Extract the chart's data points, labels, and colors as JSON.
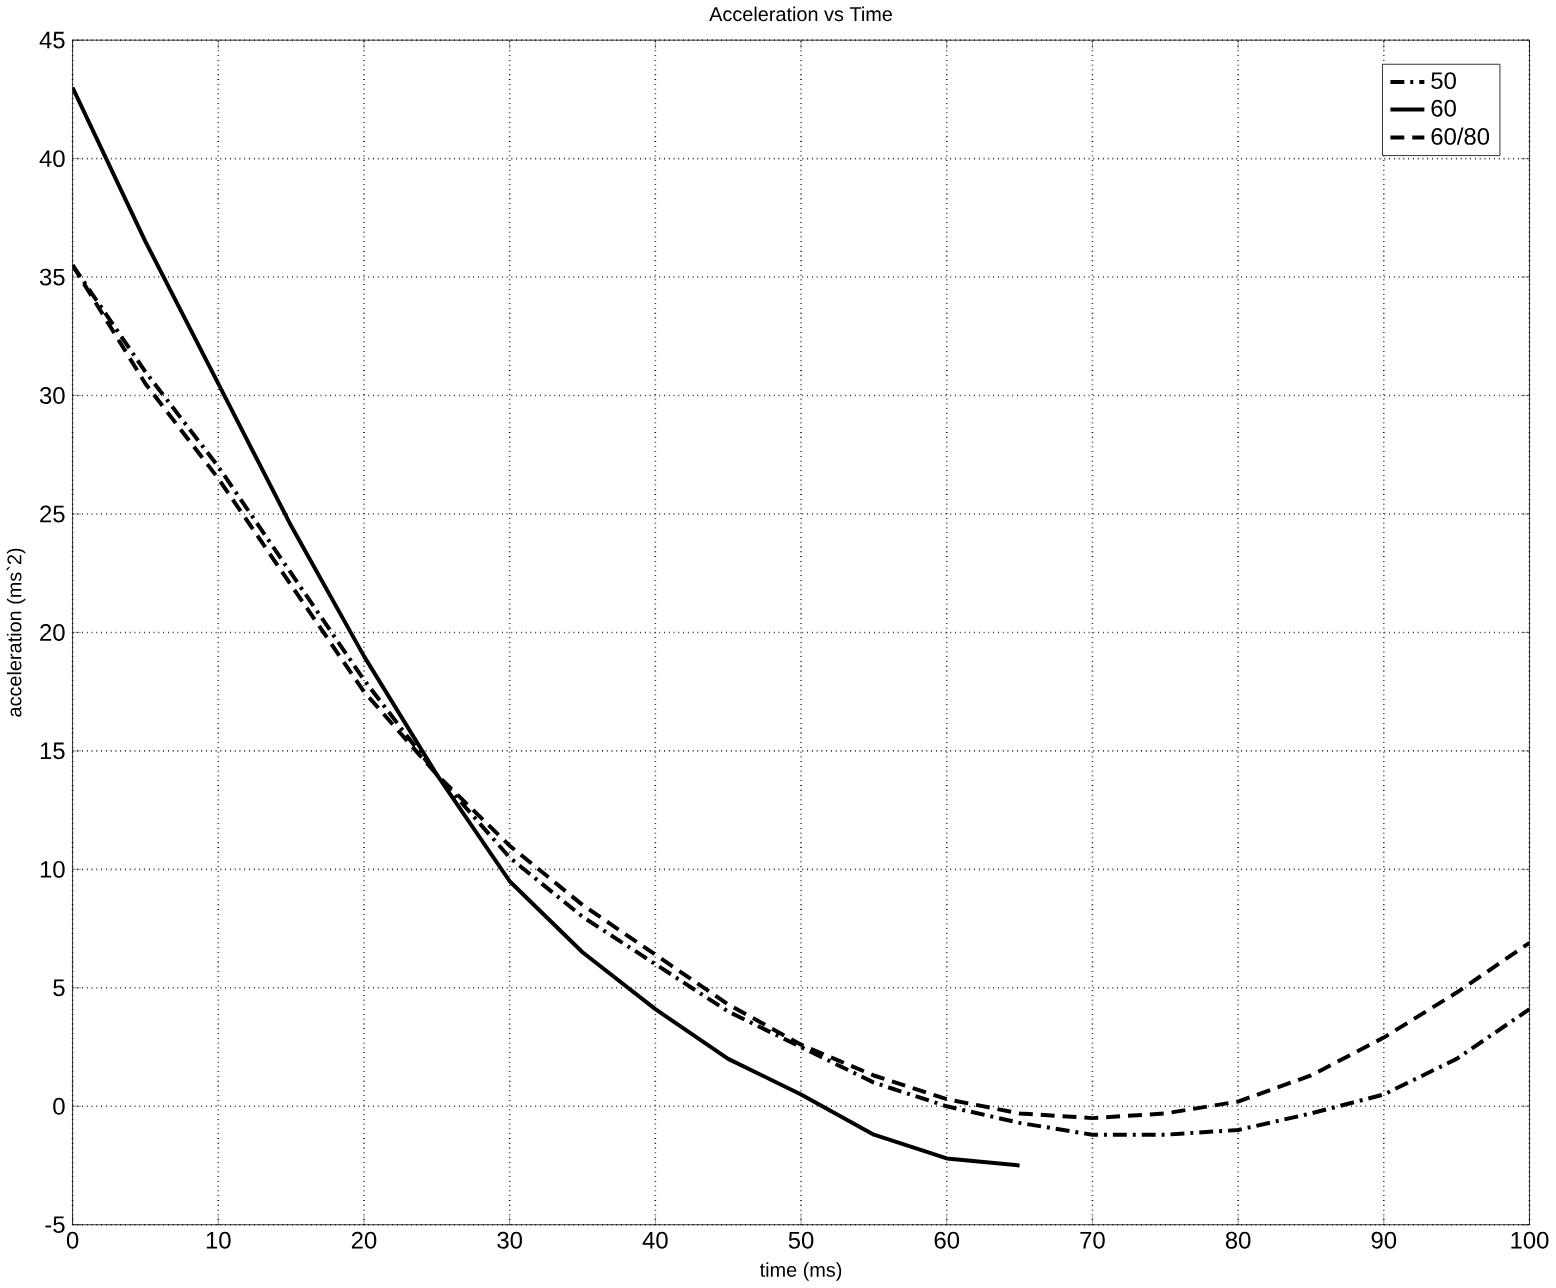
{
  "chart_data": {
    "type": "line",
    "title": "Acceleration vs Time",
    "xlabel": "time (ms)",
    "ylabel": "acceleration (ms`2)",
    "xlim": [
      0,
      100
    ],
    "ylim": [
      -5,
      45
    ],
    "xticks": [
      0,
      10,
      20,
      30,
      40,
      50,
      60,
      70,
      80,
      90,
      100
    ],
    "yticks": [
      -5,
      0,
      5,
      10,
      15,
      20,
      25,
      30,
      35,
      40,
      45
    ],
    "grid": true,
    "legend": "top right",
    "x": [
      0,
      5,
      10,
      15,
      20,
      25,
      30,
      35,
      40,
      45,
      50,
      55,
      60,
      65,
      70,
      75,
      80,
      85,
      90,
      95,
      100
    ],
    "series": [
      {
        "name": "50",
        "color": "#000000",
        "line_style": "dashdot",
        "values": [
          35.5,
          31,
          27,
          22.5,
          18,
          14,
          10.5,
          8,
          6,
          4,
          2.5,
          1,
          0,
          -0.7,
          -1.2,
          -1.2,
          -1,
          -0.3,
          0.5,
          2,
          4.1
        ]
      },
      {
        "name": "60",
        "color": "#000000",
        "line_style": "solid",
        "x": [
          0,
          5,
          10,
          15,
          20,
          25,
          30,
          35,
          40,
          45,
          50,
          55,
          60,
          65
        ],
        "values": [
          43,
          36.5,
          30.5,
          24.5,
          19,
          14,
          9.5,
          6.5,
          4.1,
          2,
          0.5,
          -1.2,
          -2.2,
          -2.5
        ]
      },
      {
        "name": "60/80",
        "color": "#000000",
        "line_style": "dashed",
        "values": [
          35.5,
          30.5,
          26.5,
          22,
          17.5,
          14,
          11,
          8.5,
          6.4,
          4.3,
          2.6,
          1.3,
          0.3,
          -0.3,
          -0.5,
          -0.3,
          0.2,
          1.3,
          2.9,
          4.8,
          6.9
        ]
      }
    ]
  }
}
